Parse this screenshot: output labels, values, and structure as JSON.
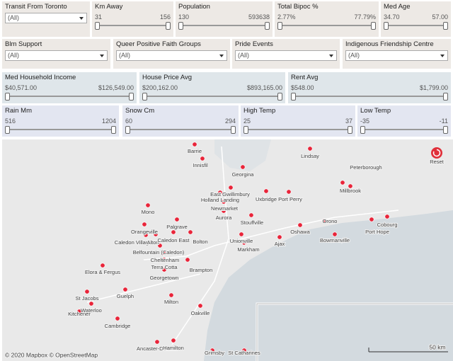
{
  "filter_rows": [
    [
      {
        "label": "Transit From Toronto",
        "value": "(All)"
      },
      {
        "label": "Km Away",
        "min": "31",
        "max": "156"
      },
      {
        "label": "Population",
        "min": "130",
        "max": "593638"
      },
      {
        "label": "Total Bipoc %",
        "min": "2.77%",
        "max": "77.79%"
      },
      {
        "label": "Med Age",
        "min": "34.70",
        "max": "57.00"
      }
    ],
    [
      {
        "label": "Blm Support",
        "value": "(All)"
      },
      {
        "label": "Queer Positive Faith Groups",
        "value": "(All)"
      },
      {
        "label": "Pride Events",
        "value": "(All)"
      },
      {
        "label": "Indigenous Friendship Centre",
        "value": "(All)"
      }
    ],
    [
      {
        "label": "Med Household Income",
        "min": "$40,571.00",
        "max": "$126,549.00"
      },
      {
        "label": "House Price Avg",
        "min": "$200,162.00",
        "max": "$893,165.00"
      },
      {
        "label": "Rent Avg",
        "min": "$548.00",
        "max": "$1,799.00"
      }
    ],
    [
      {
        "label": "Rain Mm",
        "min": "516",
        "max": "1204"
      },
      {
        "label": "Snow Cm",
        "min": "60",
        "max": "294"
      },
      {
        "label": "High Temp",
        "min": "25",
        "max": "37"
      },
      {
        "label": "Low Temp",
        "min": "-35",
        "max": "-11"
      }
    ]
  ],
  "map": {
    "towns": [
      "Barrie",
      "Innisfil",
      "Lindsay",
      "Georgina",
      "Peterborough",
      "Millbrook",
      "East Gwillimbury",
      "Holland Landing",
      "Newmarket",
      "Aurora",
      "Uxbridge",
      "Port Perry",
      "Stouffville",
      "Mono",
      "Orangeville",
      "Palgrave",
      "Caledon Village",
      "Alton",
      "Caledon East",
      "Bolton",
      "Belfountain (Caledon)",
      "Cheltenham",
      "Terra Cotta",
      "Georgetown",
      "Brampton",
      "Unionville",
      "Markham",
      "Ajax",
      "Oshawa",
      "Orono",
      "Bowmanville",
      "Port Hope",
      "Cobourg",
      "Elora & Fergus",
      "Guelph",
      "Milton",
      "Oakville",
      "St Jacobs",
      "Waterloo",
      "Kitchener",
      "Cambridge",
      "Ancaster-Dundas",
      "Hamilton",
      "Grimsby",
      "St Catharines"
    ],
    "reset": "Reset",
    "attribution": "© 2020 Mapbox © OpenStreetMap",
    "scale": "50 km"
  }
}
